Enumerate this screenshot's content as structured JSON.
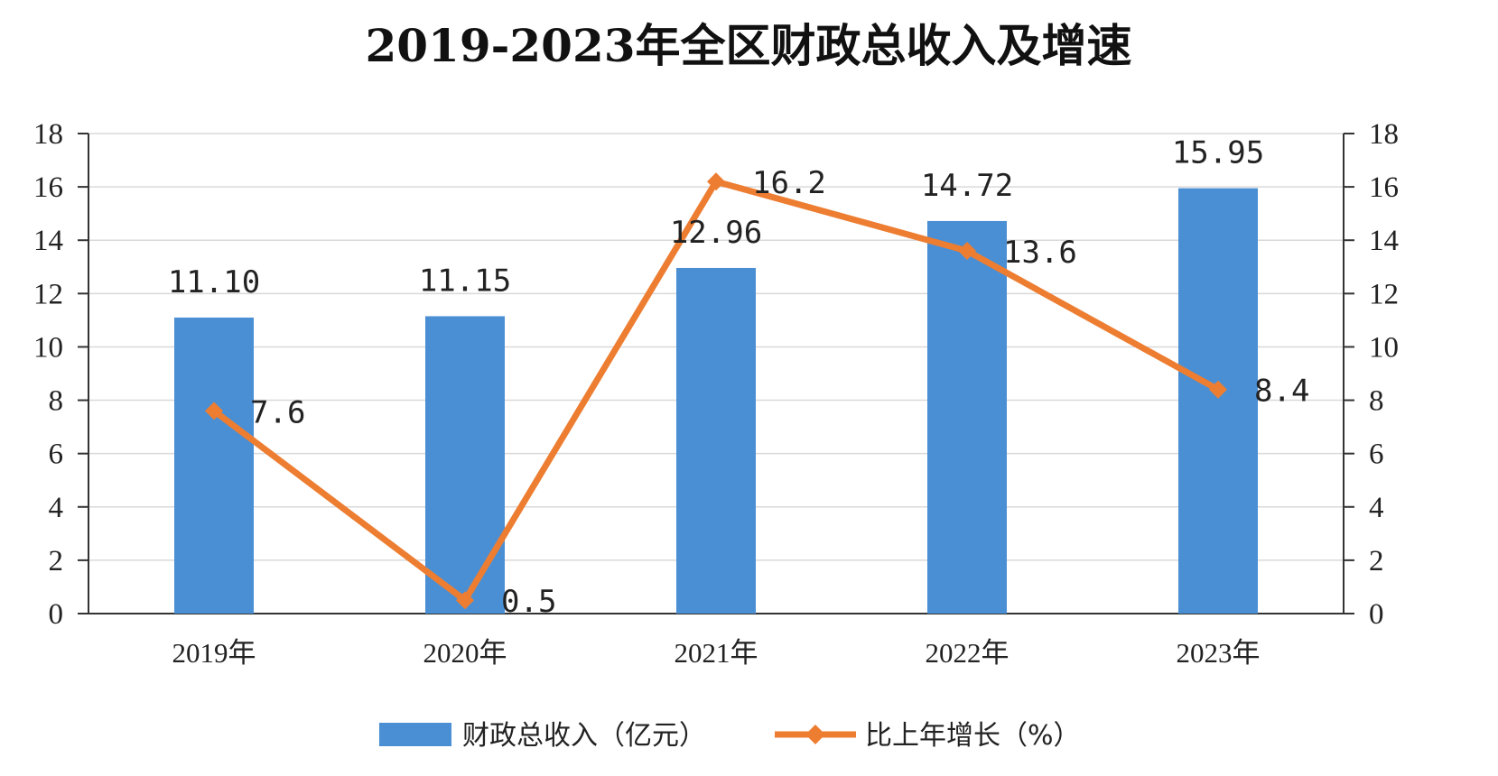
{
  "chart_data": {
    "type": "bar",
    "title": "2019-2023年全区财政总收入及增速",
    "categories": [
      "2019年",
      "2020年",
      "2021年",
      "2022年",
      "2023年"
    ],
    "series": [
      {
        "name": "财政总收入（亿元）",
        "type": "bar",
        "axis": "left",
        "color": "#4a8fd4",
        "values": [
          11.1,
          11.15,
          12.96,
          14.72,
          15.95
        ],
        "labels": [
          "11.10",
          "11.15",
          "12.96",
          "14.72",
          "15.95"
        ]
      },
      {
        "name": "比上年增长（%）",
        "type": "line",
        "axis": "right",
        "color": "#ed7d31",
        "values": [
          7.6,
          0.5,
          16.2,
          13.6,
          8.4
        ],
        "labels": [
          "7.6",
          "0.5",
          "16.2",
          "13.6",
          "8.4"
        ]
      }
    ],
    "ylim": [
      0,
      18
    ],
    "y2lim": [
      0,
      18
    ],
    "yticks": [
      "0",
      "2",
      "4",
      "6",
      "8",
      "10",
      "12",
      "14",
      "16",
      "18"
    ],
    "y2ticks": [
      "0",
      "2",
      "4",
      "6",
      "8",
      "10",
      "12",
      "14",
      "16",
      "18"
    ],
    "grid": true,
    "legend_position": "bottom"
  }
}
